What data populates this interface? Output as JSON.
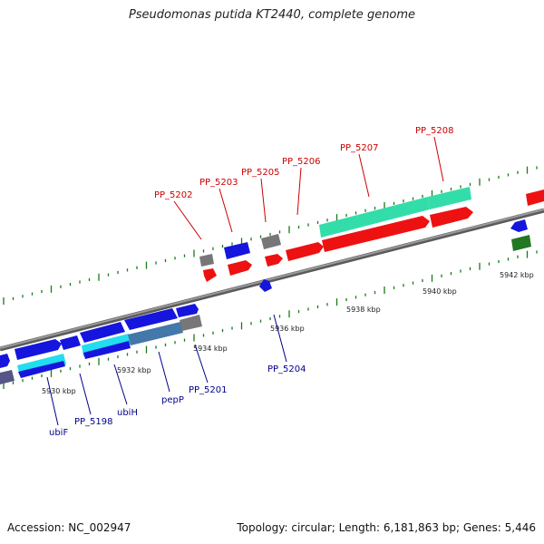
{
  "title": "Pseudomonas putida KT2440, complete genome",
  "footer": {
    "accession": "Accession: NC_002947",
    "topology": "Topology: circular; Length: 6,181,863 bp; Genes: 5,446"
  },
  "colors": {
    "backbone": "#888888",
    "plus_label": "#cc0000",
    "minus_label": "#00008b",
    "tick": "#1a7a1a",
    "gene_red": "#ee1111",
    "gene_blue": "#1515dd",
    "gene_gray": "#777777",
    "gene_cyan": "#22ddee",
    "gene_aqua": "#33ddaa",
    "gene_green": "#227722",
    "gene_steel": "#4477aa",
    "gene_slate": "#555588"
  },
  "ruler": {
    "labels": [
      "5930 kbp",
      "5932 kbp",
      "5934 kbp",
      "5936 kbp",
      "5938 kbp",
      "5940 kbp",
      "5942 kbp"
    ]
  },
  "genes_top": [
    {
      "name": "PP_5202"
    },
    {
      "name": "PP_5203"
    },
    {
      "name": "PP_5205"
    },
    {
      "name": "PP_5206"
    },
    {
      "name": "PP_5207"
    },
    {
      "name": "PP_5208"
    }
  ],
  "genes_bottom": [
    {
      "name": "ubiF"
    },
    {
      "name": "PP_5198"
    },
    {
      "name": "ubiH"
    },
    {
      "name": "pepP"
    },
    {
      "name": "PP_5201"
    },
    {
      "name": "PP_5204"
    }
  ]
}
